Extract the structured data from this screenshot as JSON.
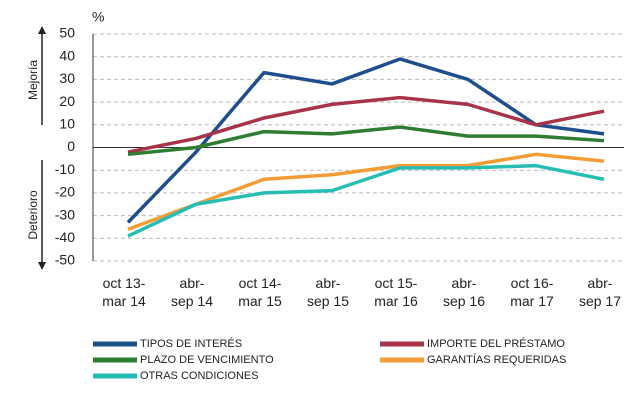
{
  "chart_data": {
    "type": "line",
    "unit": "%",
    "side_labels": [
      "Mejoría",
      "Deterioro"
    ],
    "categories": [
      "oct 13-\nmar 14",
      "abr-\nsep 14",
      "oct 14-\nmar 15",
      "abr-\nsep 15",
      "oct 15-\nmar 16",
      "abr-\nsep 16",
      "oct 16-\nmar 17",
      "abr-\nsep 17"
    ],
    "series": [
      {
        "name": "TIPOS DE INTERÉS",
        "color": "#1f4e8c",
        "values": [
          -33,
          -2,
          33,
          28,
          39,
          30,
          10,
          6
        ]
      },
      {
        "name": "IMPORTE DEL PRÉSTAMO",
        "color": "#a8344a",
        "values": [
          -2,
          4,
          13,
          19,
          22,
          19,
          10,
          16
        ]
      },
      {
        "name": "PLAZO DE VENCIMIENTO",
        "color": "#2e7d32",
        "values": [
          -3,
          0,
          7,
          6,
          9,
          5,
          5,
          3
        ]
      },
      {
        "name": "GARANTÍAS REQUERIDAS",
        "color": "#f39c34",
        "values": [
          -36,
          -25,
          -14,
          -12,
          -8,
          -8,
          -3,
          -6
        ]
      },
      {
        "name": "OTRAS CONDICIONES",
        "color": "#26bdb5",
        "values": [
          -39,
          -25,
          -20,
          -19,
          -9,
          -9,
          -8,
          -14
        ]
      }
    ],
    "ylim": [
      -50,
      50
    ],
    "yticks": [
      -50,
      -40,
      -30,
      -20,
      -10,
      0,
      10,
      20,
      30,
      40,
      50
    ],
    "grid": true
  }
}
